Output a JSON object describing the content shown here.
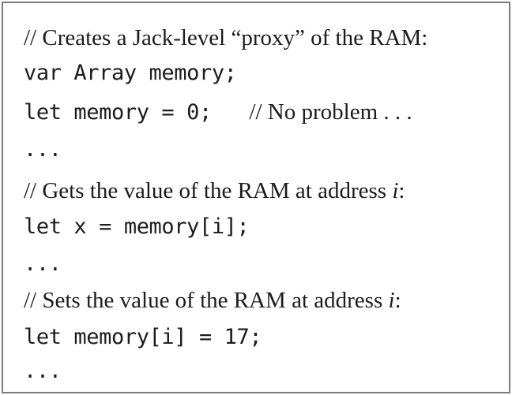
{
  "listing": {
    "line1_comment": "// Creates a Jack-level “proxy” of the RAM:",
    "line2_code": "var Array memory;",
    "line3_code": "let memory = 0;",
    "line3_comment": "// No problem . . .",
    "line4_ellipsis": "...",
    "line5_comment_prefix": "// Gets the value of the RAM at address ",
    "line5_comment_var": "i",
    "line5_comment_suffix": ":",
    "line6_code": "let x = memory[i];",
    "line7_ellipsis": "...",
    "line8_comment_prefix": "// Sets the value of the RAM at address ",
    "line8_comment_var": "i",
    "line8_comment_suffix": ":",
    "line9_code": "let memory[i] = 17;",
    "line10_ellipsis": "..."
  }
}
